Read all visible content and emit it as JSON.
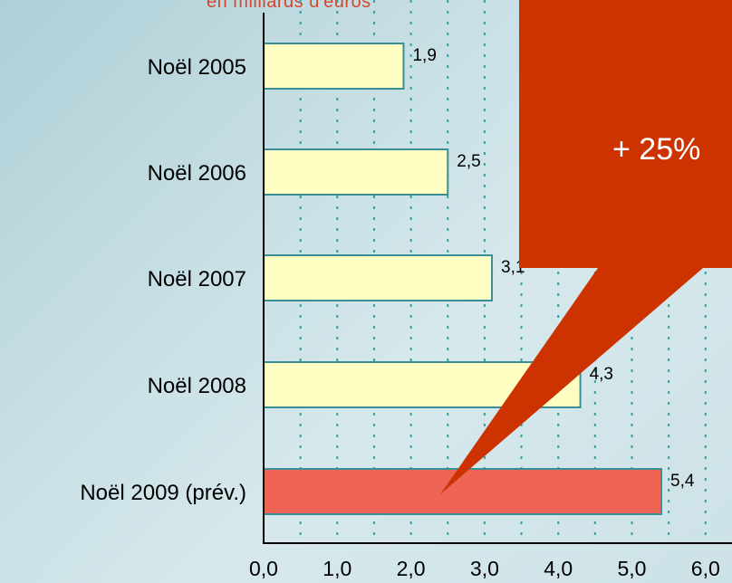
{
  "chart_data": {
    "type": "bar",
    "orientation": "horizontal",
    "subtitle": "en milliards d'euros",
    "categories": [
      "Noël 2005",
      "Noël 2006",
      "Noël 2007",
      "Noël 2008",
      "Noël 2009 (prév.)"
    ],
    "values": [
      1.9,
      2.5,
      3.1,
      4.3,
      5.4
    ],
    "value_labels": [
      "1,9",
      "2,5",
      "3,1",
      "4,3",
      "5,4"
    ],
    "xlim": [
      0,
      6
    ],
    "x_ticks": [
      0,
      1,
      2,
      3,
      4,
      5,
      6
    ],
    "x_tick_labels": [
      "0,0",
      "1,0",
      "2,0",
      "3,0",
      "4,0",
      "5,0",
      "6,0"
    ],
    "grid": "vertical dotted",
    "bar_colors": [
      "#ffffc4",
      "#ffffc4",
      "#ffffc4",
      "#ffffc4",
      "#ee6555"
    ],
    "bar_edge_color": "#3a8f96",
    "grid_color": "#2ea3a0",
    "callout": {
      "text": "+ 25%",
      "color": "#cc3300",
      "target_category": "Noël 2009 (prév.)"
    }
  }
}
